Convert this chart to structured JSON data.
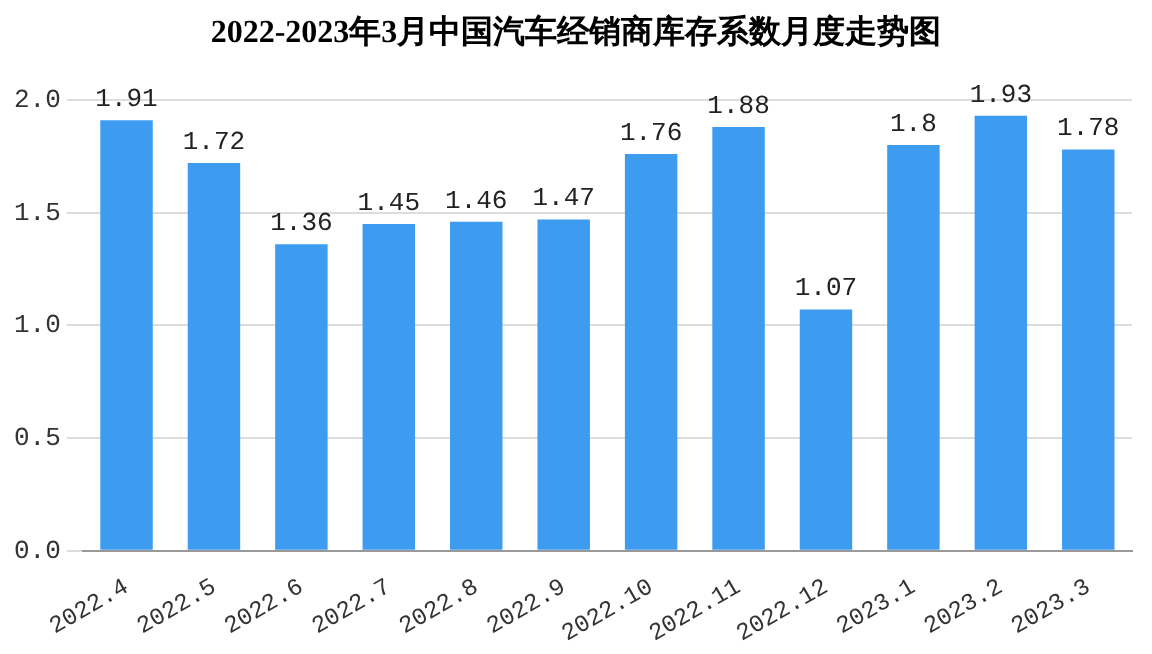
{
  "chart_data": {
    "type": "bar",
    "title": "2022-2023年3月中国汽车经销商库存系数月度走势图",
    "categories": [
      "2022.4",
      "2022.5",
      "2022.6",
      "2022.7",
      "2022.8",
      "2022.9",
      "2022.10",
      "2022.11",
      "2022.12",
      "2023.1",
      "2023.2",
      "2023.3"
    ],
    "values": [
      1.91,
      1.72,
      1.36,
      1.45,
      1.46,
      1.47,
      1.76,
      1.88,
      1.07,
      1.8,
      1.93,
      1.78
    ],
    "color": "#3d9cf0",
    "ylim": [
      0,
      2
    ],
    "yticks": [
      {
        "value": 0,
        "label": "0.0"
      },
      {
        "value": 0.5,
        "label": "0.5"
      },
      {
        "value": 1,
        "label": "1.0"
      },
      {
        "value": 1.5,
        "label": "1.5"
      },
      {
        "value": 2,
        "label": "2.0"
      }
    ],
    "grid": "y",
    "data_labels": true
  }
}
